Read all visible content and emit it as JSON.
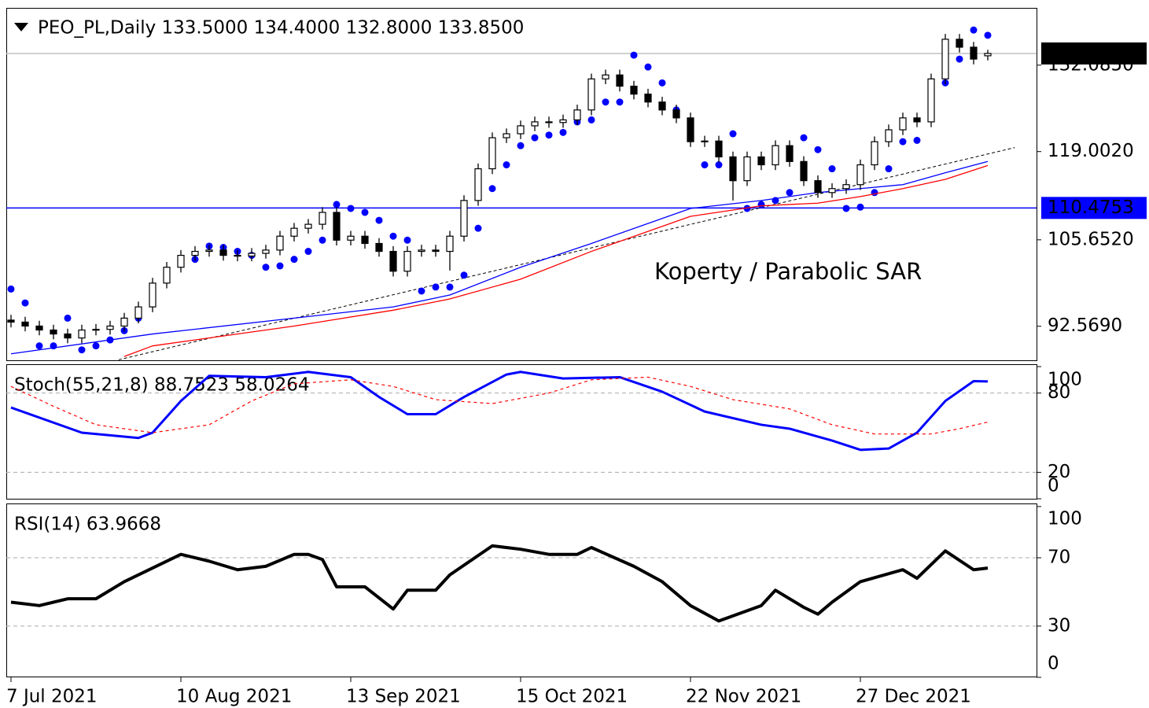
{
  "chart_data": [
    {
      "type": "candlestick",
      "title": "PEO_PL,Daily  133.5000 134.4000 132.8000 133.8500",
      "annotation": "Koperty / Parabolic SAR",
      "categories": [
        "7 Jul 2021",
        null,
        null,
        null,
        null,
        null,
        null,
        null,
        null,
        null,
        null,
        null,
        "10 Aug 2021",
        null,
        null,
        null,
        null,
        null,
        null,
        null,
        null,
        null,
        null,
        null,
        "13 Sep 2021",
        null,
        null,
        null,
        null,
        null,
        null,
        null,
        null,
        null,
        null,
        null,
        "15 Oct 2021",
        null,
        null,
        null,
        null,
        null,
        null,
        null,
        null,
        null,
        null,
        null,
        "22 Nov 2021",
        null,
        null,
        null,
        null,
        null,
        null,
        null,
        null,
        null,
        null,
        null,
        "27 Dec 2021",
        null,
        null,
        null,
        null,
        null,
        null,
        null,
        null,
        null
      ],
      "open": [
        93.5,
        93.2,
        92.6,
        92.0,
        91.4,
        90.8,
        92.0,
        92.1,
        92.6,
        93.8,
        95.5,
        99.1,
        101.5,
        103.3,
        103.9,
        104.1,
        103.3,
        103.2,
        103.6,
        104.1,
        106.2,
        107.4,
        108.0,
        109.8,
        105.6,
        106.2,
        105.1,
        103.9,
        100.9,
        103.9,
        104.1,
        103.9,
        106.2,
        111.6,
        116.4,
        121.1,
        121.7,
        122.9,
        123.5,
        123.4,
        123.8,
        125.3,
        130.0,
        130.6,
        128.9,
        127.7,
        126.5,
        125.3,
        124.1,
        120.5,
        120.6,
        118.2,
        114.6,
        118.2,
        117.0,
        119.9,
        117.5,
        114.6,
        112.8,
        113.4,
        114.0,
        117.0,
        120.5,
        122.3,
        124.1,
        123.5,
        130.0,
        136.0,
        134.8,
        133.5
      ],
      "high": [
        94.3,
        94.0,
        93.4,
        92.8,
        92.2,
        92.8,
        92.9,
        93.4,
        94.6,
        96.3,
        99.9,
        102.3,
        104.1,
        104.7,
        104.9,
        104.9,
        104.1,
        104.4,
        104.9,
        107.0,
        108.2,
        108.8,
        110.6,
        110.6,
        107.0,
        107.0,
        105.9,
        104.7,
        104.7,
        104.9,
        104.9,
        107.0,
        112.4,
        117.2,
        121.9,
        122.5,
        123.7,
        124.3,
        124.3,
        124.6,
        126.1,
        130.8,
        131.4,
        131.4,
        129.7,
        128.5,
        127.3,
        126.1,
        124.9,
        121.4,
        121.4,
        119.0,
        119.0,
        119.0,
        120.7,
        120.7,
        118.3,
        115.4,
        114.2,
        114.8,
        117.8,
        121.3,
        123.1,
        124.9,
        124.9,
        130.8,
        136.8,
        136.8,
        135.6,
        134.4
      ],
      "low": [
        92.4,
        91.8,
        91.2,
        90.6,
        90.0,
        90.0,
        91.2,
        91.3,
        91.8,
        93.0,
        94.7,
        98.3,
        100.7,
        102.5,
        103.1,
        102.5,
        102.4,
        102.4,
        102.8,
        103.3,
        105.4,
        106.6,
        107.2,
        104.8,
        104.8,
        104.3,
        103.1,
        100.1,
        100.1,
        103.1,
        103.1,
        101.0,
        105.4,
        110.8,
        115.6,
        120.3,
        120.9,
        122.1,
        122.6,
        122.6,
        123.0,
        124.5,
        129.2,
        128.1,
        126.9,
        125.7,
        124.5,
        123.3,
        119.7,
        119.7,
        117.4,
        111.6,
        113.8,
        116.2,
        116.2,
        116.7,
        113.8,
        112.0,
        112.0,
        112.6,
        113.2,
        116.2,
        119.7,
        121.5,
        122.7,
        122.7,
        129.2,
        134.0,
        132.2,
        132.8
      ],
      "close": [
        93.2,
        92.6,
        92.0,
        91.4,
        90.8,
        92.0,
        92.1,
        92.6,
        93.8,
        95.5,
        99.1,
        101.5,
        103.3,
        103.9,
        104.1,
        103.3,
        103.2,
        103.6,
        104.1,
        106.2,
        107.4,
        108.0,
        109.8,
        105.6,
        106.2,
        105.1,
        103.9,
        100.9,
        103.9,
        104.1,
        103.9,
        106.2,
        111.6,
        116.4,
        121.1,
        121.7,
        122.9,
        123.5,
        123.4,
        123.8,
        125.3,
        130.0,
        130.6,
        128.9,
        127.7,
        126.5,
        125.3,
        124.1,
        120.5,
        120.6,
        118.2,
        114.6,
        118.2,
        117.0,
        119.9,
        117.5,
        114.6,
        112.8,
        113.4,
        114.0,
        117.0,
        120.5,
        122.3,
        124.1,
        123.5,
        130.0,
        136.0,
        134.8,
        133.0,
        133.85
      ],
      "series": [
        {
          "type": "dots",
          "color": "#0000ff",
          "values": [
            98.2,
            96.1,
            89.6,
            89.6,
            93.8,
            89.0,
            89.6,
            90.5,
            91.9,
            93.8,
            96.7,
            99.7,
            102.1,
            102.7,
            104.7,
            104.5,
            103.9,
            103.3,
            101.5,
            101.7,
            102.7,
            103.9,
            105.6,
            111.0,
            110.4,
            109.8,
            108.6,
            106.2,
            105.6,
            97.9,
            98.5,
            98.5,
            100.3,
            107.4,
            113.4,
            117.0,
            119.9,
            121.1,
            121.5,
            121.9,
            123.5,
            123.8,
            126.5,
            126.5,
            133.6,
            131.8,
            129.4,
            125.3,
            122.3,
            117.0,
            117.0,
            121.7,
            110.4,
            111.0,
            111.6,
            112.8,
            121.1,
            119.3,
            116.4,
            110.4,
            110.6,
            112.8,
            116.4,
            120.5,
            120.7,
            124.1,
            129.4,
            133.0,
            137.4,
            136.6
          ]
        },
        {
          "type": "line",
          "color": "#0000ff",
          "x": [
            0,
            10,
            20,
            27,
            31,
            36,
            41,
            48,
            53,
            57,
            60,
            63,
            66,
            69
          ],
          "values": [
            88.4,
            91.4,
            93.8,
            95.5,
            97.3,
            101.5,
            105.1,
            110.4,
            111.6,
            112.8,
            113.4,
            114.0,
            115.8,
            117.5
          ]
        },
        {
          "type": "line",
          "color": "#ff0000",
          "x": [
            8,
            10,
            20,
            27,
            31,
            36,
            41,
            48,
            53,
            57,
            60,
            63,
            66,
            69
          ],
          "values": [
            88.0,
            89.6,
            92.6,
            95.0,
            96.7,
            99.7,
            103.9,
            109.2,
            110.8,
            111.2,
            112.2,
            113.4,
            114.8,
            116.9
          ]
        }
      ],
      "trendline": {
        "x": [
          7.6,
          70.9
        ],
        "values": [
          87.5,
          119.6
        ],
        "color": "#000000"
      },
      "hlines": [
        {
          "value": 133.85,
          "label": "133.8500",
          "color": "#c0c0c0",
          "box": "#000000"
        },
        {
          "value": 110.4753,
          "label": "110.4753",
          "color": "#0000ff",
          "box": "#0000ff"
        }
      ],
      "ylim": [
        87.3,
        140.75
      ],
      "yticks": [
        {
          "value": 92.569,
          "label": "92.5690"
        },
        {
          "value": 105.652,
          "label": "105.6520"
        },
        {
          "value": 119.002,
          "label": "119.0020"
        },
        {
          "value": 132.085,
          "label": "132.0850"
        }
      ]
    },
    {
      "type": "line",
      "title": "Stoch(55,21,8) 88.7523 58.0264",
      "series": [
        {
          "color": "#0000ff",
          "width": 3,
          "x": [
            0,
            5,
            9,
            10,
            12,
            14,
            18,
            21,
            24,
            26,
            28,
            30,
            32,
            35,
            36,
            39,
            43,
            46,
            49,
            53,
            55,
            58,
            60,
            62,
            64,
            66,
            68,
            69
          ],
          "values": [
            69,
            50,
            46,
            50,
            74,
            93,
            92,
            96,
            92,
            77,
            64,
            64,
            77,
            94,
            96,
            91,
            92,
            81,
            66,
            56,
            53,
            44,
            37,
            38,
            50,
            74,
            89,
            88.75
          ]
        },
        {
          "color": "#ff0000",
          "width": 1.2,
          "dashed": true,
          "x": [
            0,
            3,
            6,
            10,
            14,
            17,
            20,
            24,
            27,
            30,
            34,
            38,
            41,
            45,
            48,
            51,
            55,
            58,
            61,
            65,
            67,
            69
          ],
          "values": [
            85,
            70,
            56,
            50,
            56,
            74,
            87,
            90,
            85,
            75,
            72,
            80,
            90,
            92,
            85,
            75,
            68,
            56,
            49,
            49,
            53,
            58.03
          ]
        }
      ],
      "levels": [
        80,
        20
      ],
      "ylim": [
        -0.6,
        101.8
      ],
      "yticks": [
        100,
        80,
        20,
        0
      ]
    },
    {
      "type": "line",
      "title": "RSI(14) 63.9668",
      "series": [
        {
          "color": "#000000",
          "width": 4,
          "x": [
            0,
            2,
            4,
            6,
            8,
            10,
            12,
            14,
            16,
            18,
            20,
            21,
            22,
            23,
            25,
            27,
            28,
            30,
            31,
            34,
            36,
            38,
            40,
            41,
            44,
            46,
            48,
            50,
            53,
            54,
            56,
            57,
            58,
            60,
            63,
            64,
            66,
            68,
            69
          ],
          "values": [
            44,
            42,
            46,
            46,
            56,
            64,
            72,
            68,
            63,
            65,
            72,
            72,
            69,
            53,
            53,
            40,
            51,
            51,
            60,
            77,
            75,
            72,
            72,
            76,
            65,
            56,
            42,
            33,
            42,
            51,
            41,
            37,
            44,
            56,
            63,
            58,
            74,
            63,
            63.97
          ]
        }
      ],
      "levels": [
        70,
        30
      ],
      "ylim": [
        0,
        101.8
      ],
      "yticks": [
        100,
        70,
        30,
        0
      ]
    }
  ]
}
